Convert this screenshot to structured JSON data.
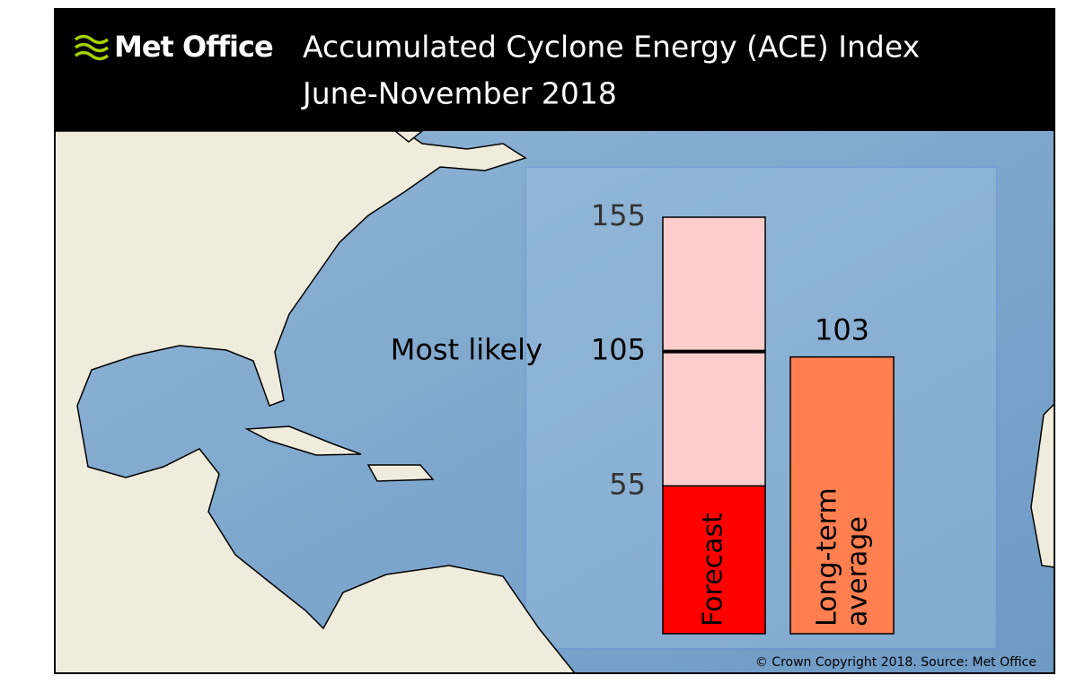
{
  "header": {
    "logo": "Met Office"
  },
  "chart_data": {
    "type": "bar",
    "title": "Accumulated Cyclone Energy (ACE) Index",
    "subtitle": "June-November 2018",
    "ylim": [
      0,
      155
    ],
    "forecast": {
      "name": "Forecast",
      "low": 55,
      "most_likely": 105,
      "high": 155,
      "most_likely_label": "Most likely",
      "color_low": "#ff0000",
      "color_range": "#ffcccc"
    },
    "average": {
      "name": "Long-term average",
      "value": 103,
      "color": "#ff7f50"
    }
  },
  "footer": "© Crown Copyright 2018. Source: Met Office"
}
